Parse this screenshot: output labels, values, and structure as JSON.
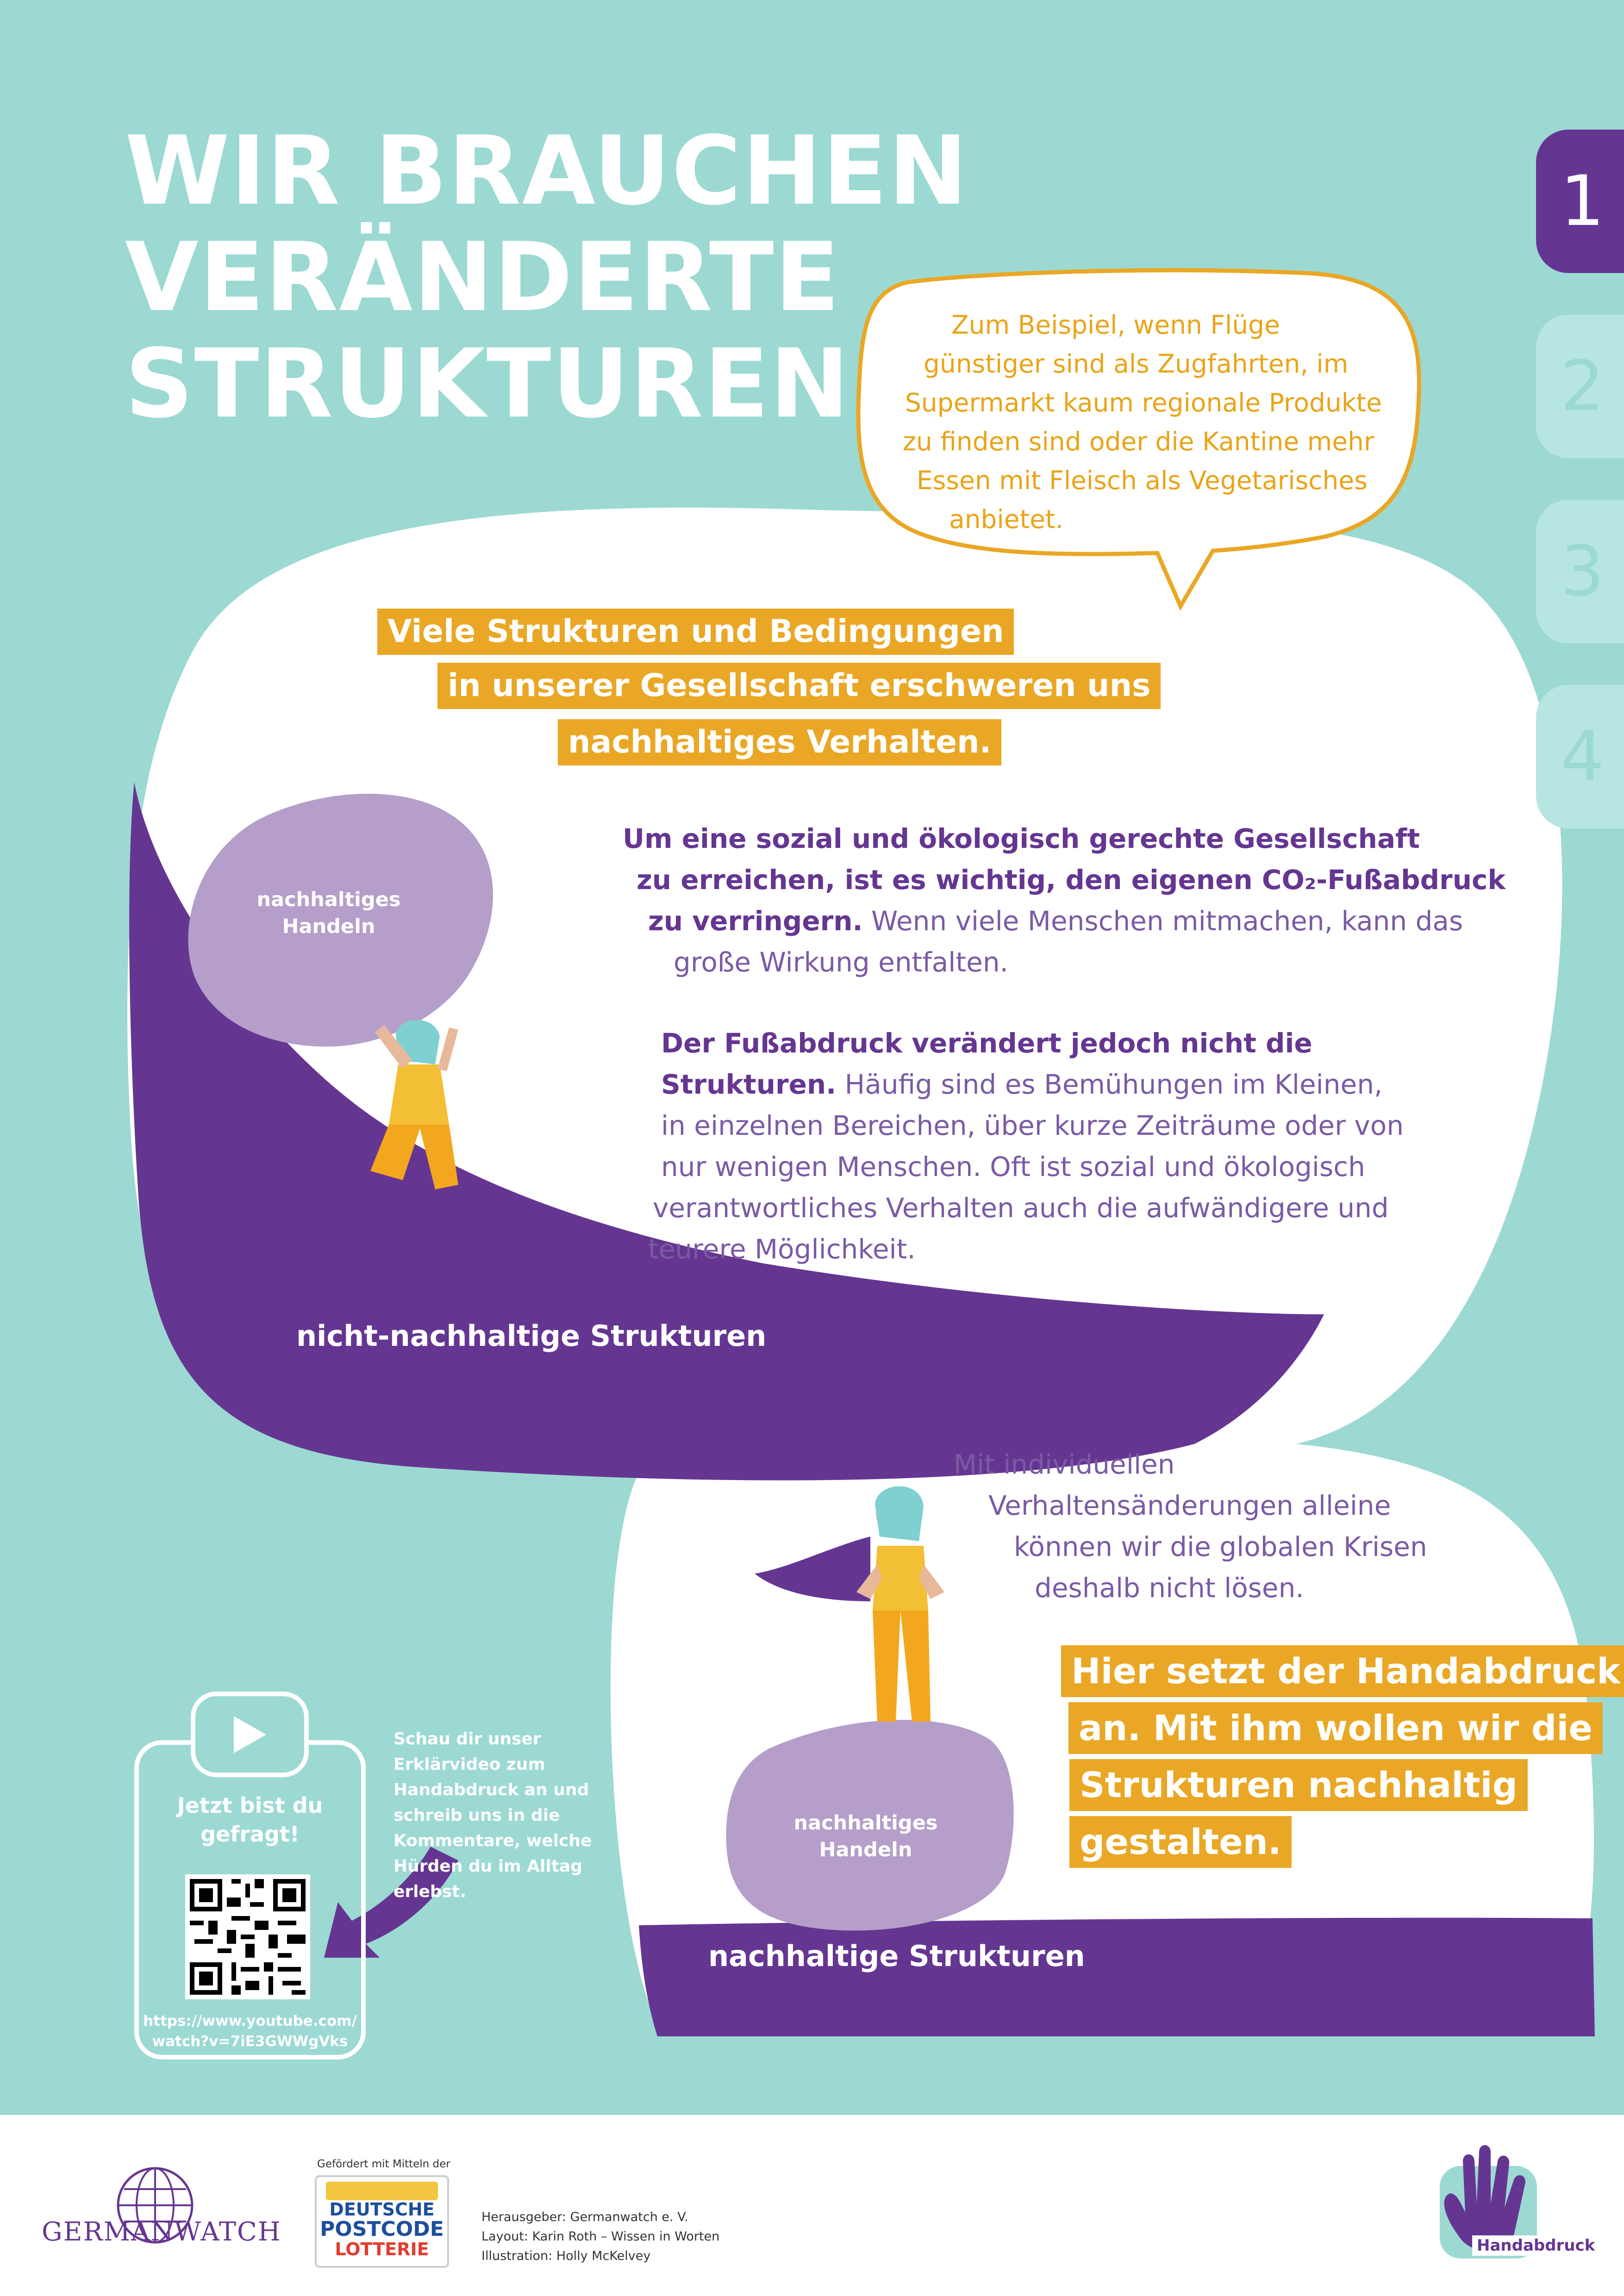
{
  "title": {
    "line1": "WIR BRAUCHEN",
    "line2": "VERÄNDERTE",
    "line3": "STRUKTUREN"
  },
  "tabs": [
    {
      "label": "1",
      "active": true
    },
    {
      "label": "2",
      "active": false
    },
    {
      "label": "3",
      "active": false
    },
    {
      "label": "4",
      "active": false
    }
  ],
  "bubble": {
    "lines": [
      "Zum Beispiel, wenn Flüge",
      "günstiger sind als Zugfahrten, im",
      "Supermarkt kaum regionale Produkte",
      "zu finden sind oder die Kantine mehr",
      "Essen mit Fleisch als Vegetarisches",
      "anbietet."
    ]
  },
  "highlight_top": {
    "lines": [
      "Viele Strukturen und Bedingungen",
      "in unserer Gesellschaft erschweren uns",
      "nachhaltiges Verhalten."
    ]
  },
  "paragraph1": {
    "bold1": "Um eine sozial und ökologisch gerechte Gesellschaft",
    "bold2": "zu erreichen, ist es wichtig, den eigenen CO₂-Fußabdruck",
    "bold3": "zu verringern.",
    "light3": " Wenn viele Menschen mitmachen, kann das",
    "light4": "große Wirkung entfalten."
  },
  "paragraph2": {
    "bold1": "Der Fußabdruck verändert jedoch nicht die",
    "bold2": "Strukturen.",
    "light2": " Häufig sind es Bemühungen im Kleinen,",
    "line3": "in einzelnen Bereichen, über kurze Zeiträume oder von",
    "line4": "nur wenigen Menschen. Oft ist sozial und ökologisch",
    "line5": "verantwortliches Verhalten auch die aufwändigere und",
    "line6": "teurere Möglichkeit."
  },
  "stone_top": {
    "line1": "nachhaltiges",
    "line2": "Handeln"
  },
  "stone_bottom": {
    "line1": "nachhaltiges",
    "line2": "Handeln"
  },
  "structures_bad": "nicht-nachhaltige Strukturen",
  "structures_good": "nachhaltige Strukturen",
  "paragraph3": {
    "lines": [
      "Mit individuellen",
      "Verhaltensänderungen alleine",
      "können wir die globalen Krisen",
      "deshalb nicht lösen."
    ]
  },
  "highlight_bottom": {
    "lines": [
      "Hier setzt der Handabdruck",
      "an. Mit ihm wollen wir die",
      "Strukturen nachhaltig",
      "gestalten."
    ]
  },
  "video": {
    "cta_line1": "Jetzt bist du",
    "cta_line2": "gefragt!",
    "url_line1": "https://www.youtube.com/",
    "url_line2": "watch?v=7iE3GWWgVks",
    "side_lines": [
      "Schau dir unser",
      "Erklärvideo zum",
      "Handabdruck an und",
      "schreib uns in die",
      "Kommentare, welche",
      "Hürden du im Alltag",
      "erlebst."
    ]
  },
  "footer": {
    "germanwatch": "GERMANWATCH",
    "funded_by": "Gefördert mit Mitteln der",
    "lottery_line1": "DEUTSCHE",
    "lottery_line2": "POSTCODE",
    "lottery_line3": "LOTTERIE",
    "publisher": "Herausgeber: Germanwatch e. V.",
    "layout": "Layout: Karin Roth – Wissen in Worten",
    "illustration": "Illustration: Holly McKelvey",
    "handabdruck": "Handabdruck"
  },
  "colors": {
    "background": "#9cd9d3",
    "purple": "#653691",
    "lilac": "#b59ec9",
    "orange": "#eaa725",
    "white": "#ffffff"
  }
}
